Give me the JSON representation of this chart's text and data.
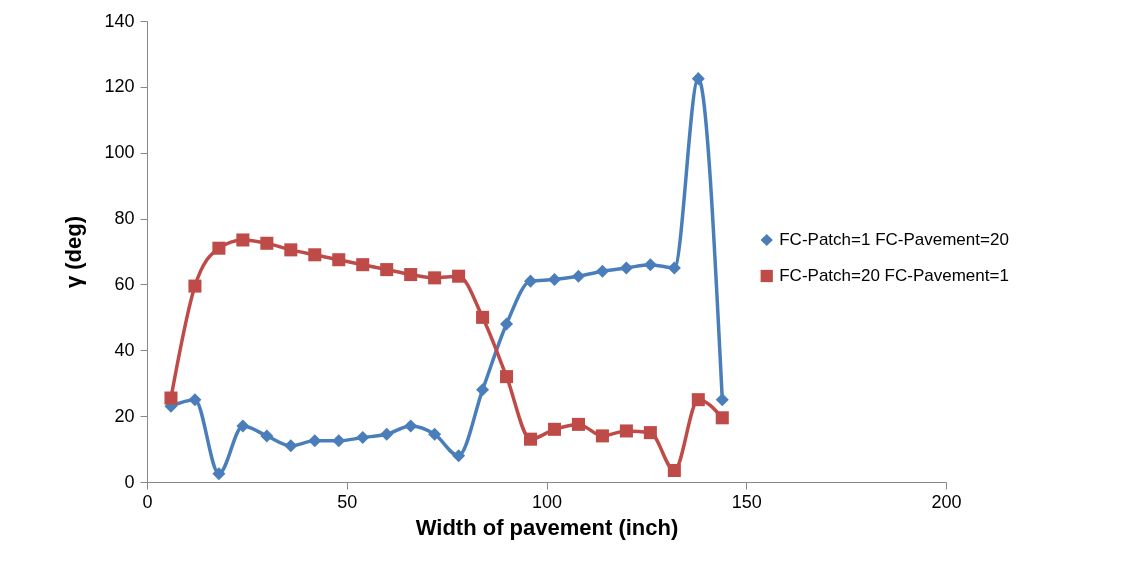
{
  "chart_data": {
    "type": "line",
    "xlabel": "Width of pavement (inch)",
    "ylabel": "γ (deg)",
    "x": [
      6,
      12,
      18,
      24,
      30,
      36,
      42,
      48,
      54,
      60,
      66,
      72,
      78,
      84,
      90,
      96,
      102,
      108,
      114,
      120,
      126,
      132,
      138,
      144
    ],
    "series": [
      {
        "name": "FC-Patch=1 FC-Pavement=20",
        "color": "#4a7ebb",
        "marker": "diamond",
        "values": [
          23,
          25,
          2.5,
          17,
          14,
          11,
          12.5,
          12.5,
          13.5,
          14.5,
          17,
          14.5,
          8,
          28,
          48,
          61,
          61.5,
          62.5,
          64,
          65,
          66,
          65,
          122.5,
          25
        ]
      },
      {
        "name": "FC-Patch=20 FC-Pavement=1",
        "color": "#be4b48",
        "marker": "square",
        "values": [
          25.5,
          59.5,
          71,
          73.5,
          72.5,
          70.5,
          69,
          67.5,
          66,
          64.5,
          63,
          62,
          62.5,
          50,
          32,
          13,
          16,
          17.5,
          14,
          15.5,
          15,
          3.5,
          25,
          19.5
        ]
      }
    ],
    "xlim": [
      0,
      200
    ],
    "xticks": [
      0,
      50,
      100,
      150,
      200
    ],
    "ylim": [
      0,
      140
    ],
    "yticks": [
      0,
      20,
      40,
      60,
      80,
      100,
      120,
      140
    ],
    "grid": false,
    "legend": "right",
    "line_style": "solid"
  }
}
